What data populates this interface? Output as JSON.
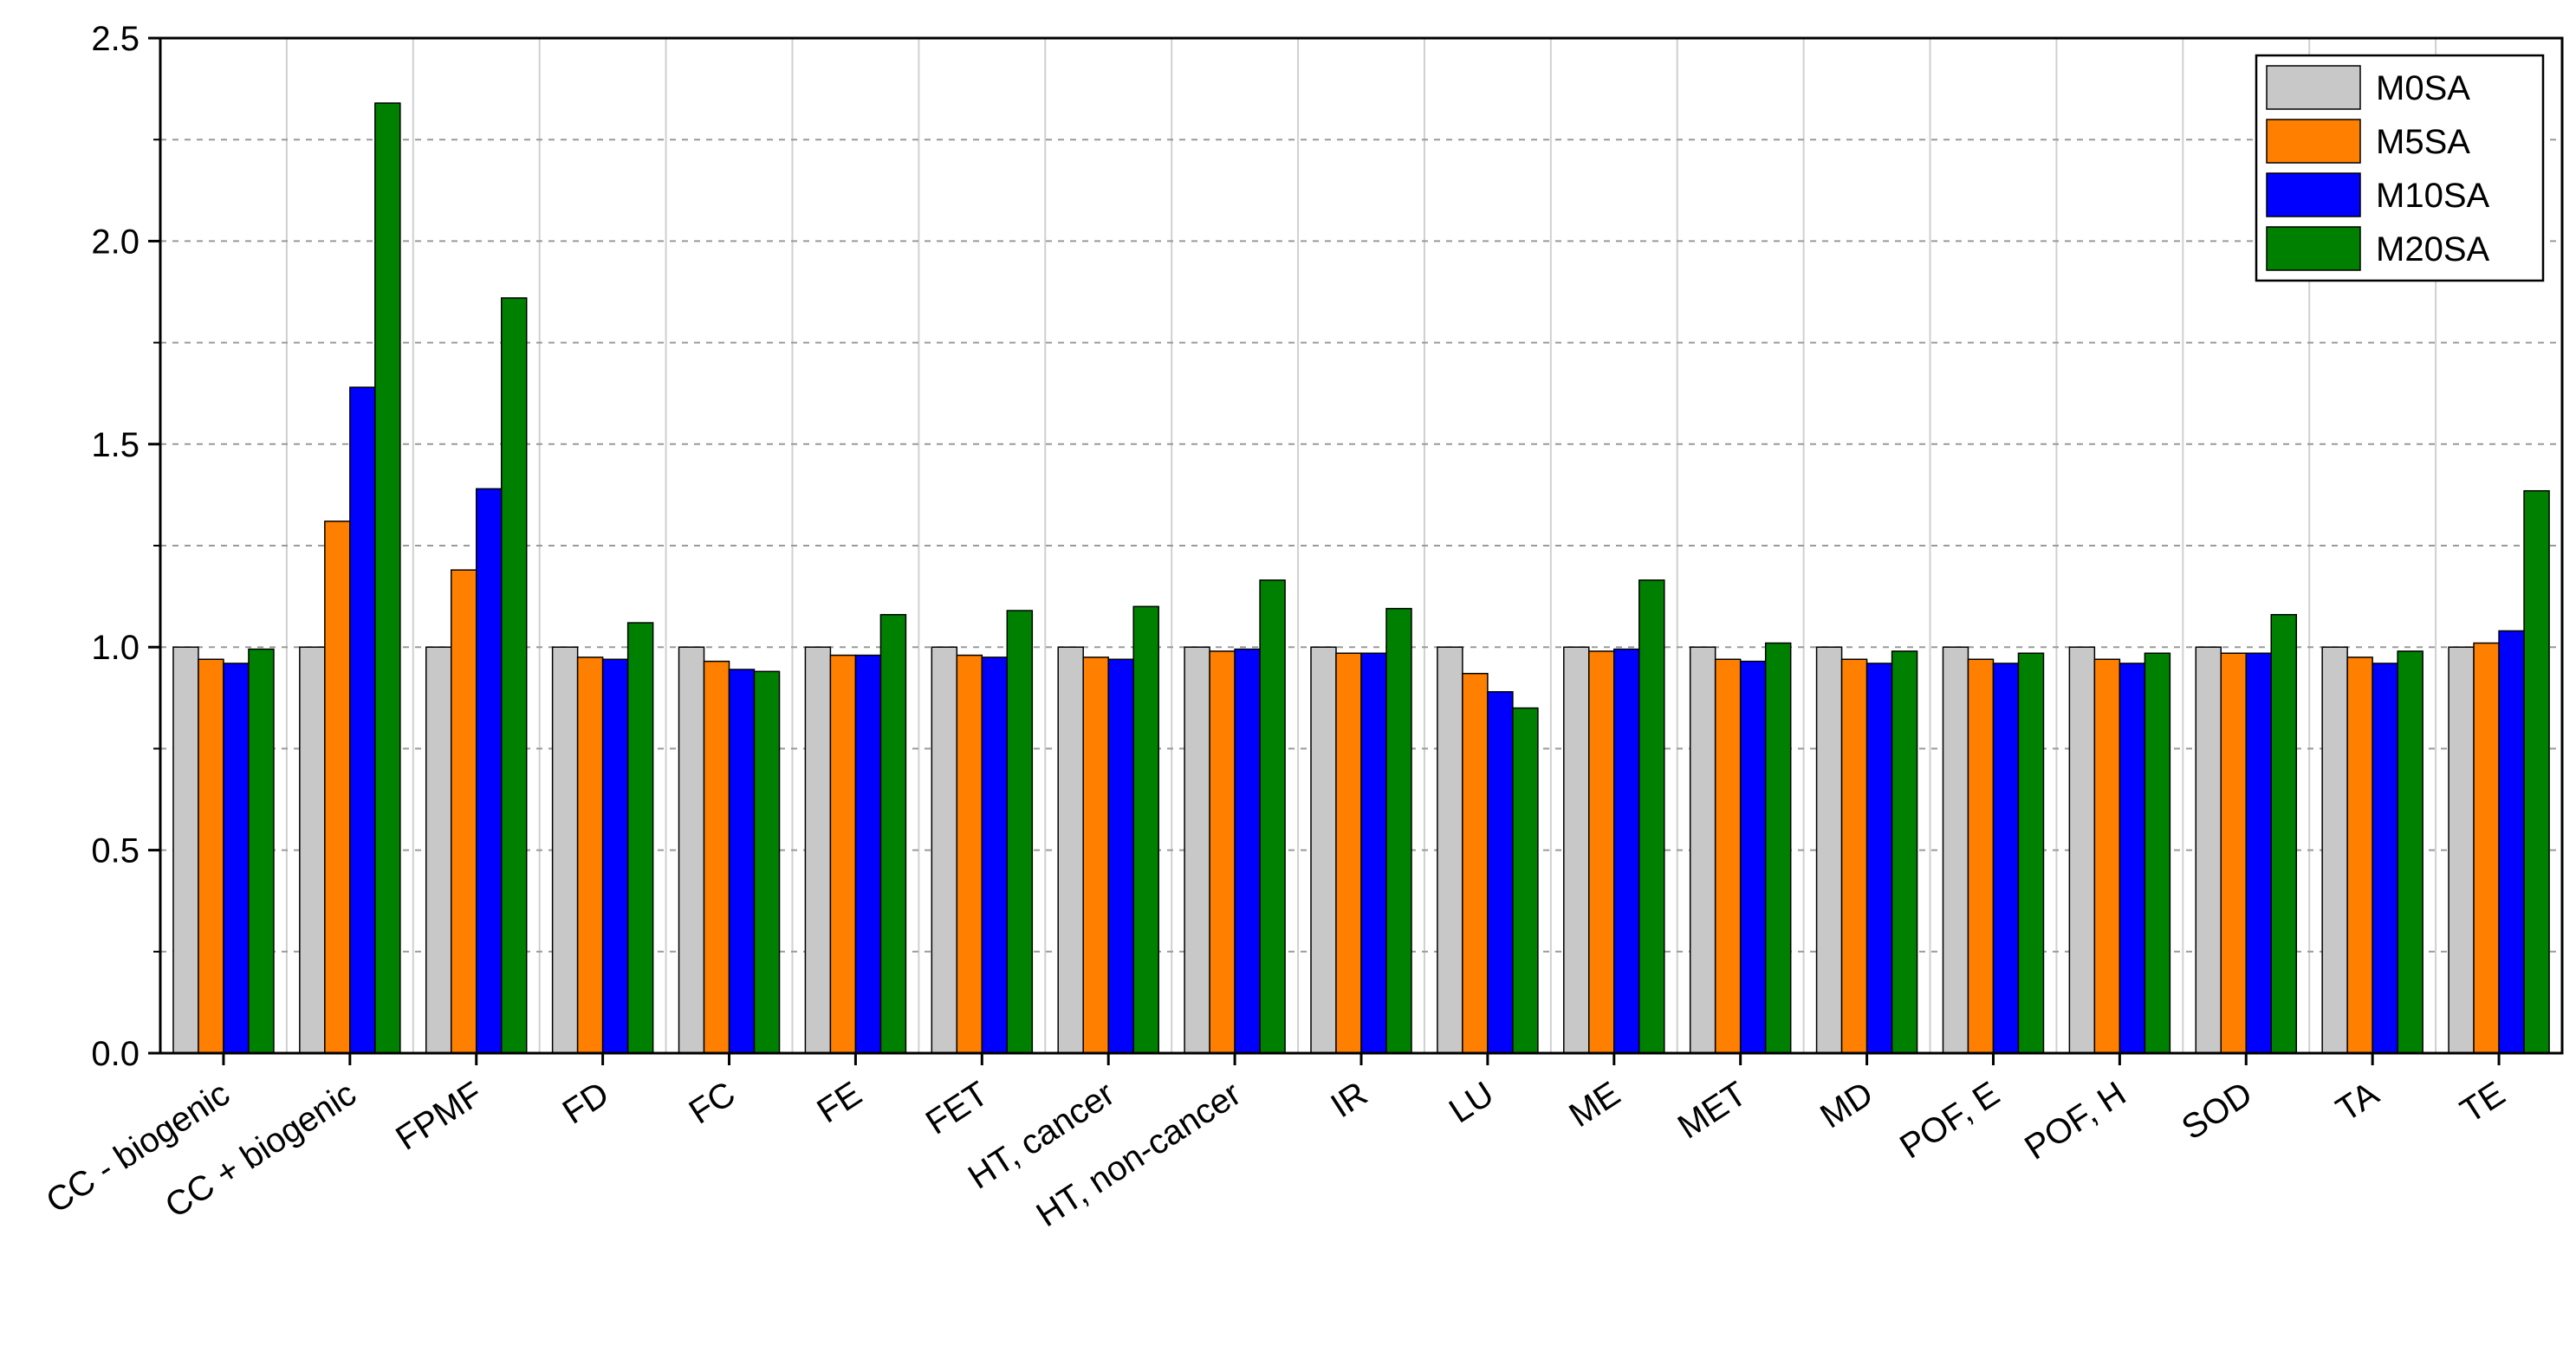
{
  "chart_data": {
    "type": "bar",
    "title": "",
    "xlabel": "",
    "ylabel": "",
    "ylim": [
      0,
      2.5
    ],
    "yticks": [
      "0.0",
      "0.5",
      "1.0",
      "1.5",
      "2.0",
      "2.5"
    ],
    "grid": true,
    "legend_position": "top-right",
    "categories": [
      "CC - biogenic",
      "CC + biogenic",
      "FPMF",
      "FD",
      "FC",
      "FE",
      "FET",
      "HT, cancer",
      "HT, non-cancer",
      "IR",
      "LU",
      "ME",
      "MET",
      "MD",
      "POF, E",
      "POF, H",
      "SOD",
      "TA",
      "TE"
    ],
    "series": [
      {
        "name": "M0SA",
        "color": "#c8c8c8",
        "values": [
          1.0,
          1.0,
          1.0,
          1.0,
          1.0,
          1.0,
          1.0,
          1.0,
          1.0,
          1.0,
          1.0,
          1.0,
          1.0,
          1.0,
          1.0,
          1.0,
          1.0,
          1.0,
          1.0
        ]
      },
      {
        "name": "M5SA",
        "color": "#ff8000",
        "values": [
          0.97,
          1.31,
          1.19,
          0.975,
          0.965,
          0.98,
          0.98,
          0.975,
          0.99,
          0.985,
          0.935,
          0.99,
          0.97,
          0.97,
          0.97,
          0.97,
          0.985,
          0.975,
          1.01
        ]
      },
      {
        "name": "M10SA",
        "color": "#0000ff",
        "values": [
          0.96,
          1.64,
          1.39,
          0.97,
          0.945,
          0.98,
          0.975,
          0.97,
          0.995,
          0.985,
          0.89,
          0.995,
          0.965,
          0.96,
          0.96,
          0.96,
          0.985,
          0.96,
          1.04
        ]
      },
      {
        "name": "M20SA",
        "color": "#008000",
        "values": [
          0.995,
          2.34,
          1.86,
          1.06,
          0.94,
          1.08,
          1.09,
          1.1,
          1.165,
          1.095,
          0.85,
          1.165,
          1.01,
          0.99,
          0.985,
          0.985,
          1.08,
          0.99,
          1.385
        ]
      }
    ]
  }
}
